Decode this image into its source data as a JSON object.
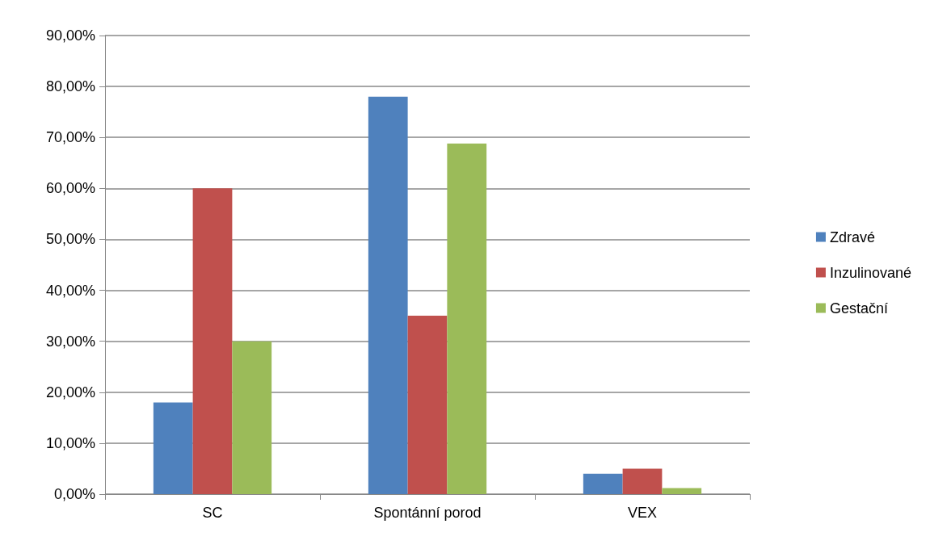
{
  "chart_data": {
    "type": "bar",
    "categories": [
      "SC",
      "Spontánní porod",
      "VEX"
    ],
    "series": [
      {
        "name": "Zdravé",
        "color": "#4f81bd",
        "values": [
          18,
          78,
          4
        ]
      },
      {
        "name": "Inzulinované",
        "color": "#c0504d",
        "values": [
          60,
          35,
          5
        ]
      },
      {
        "name": "Gestační",
        "color": "#9bbb59",
        "values": [
          30,
          68.8,
          1.2
        ]
      }
    ],
    "ylim": [
      0,
      90
    ],
    "yticks": [
      {
        "value": 0,
        "label": "0,00%"
      },
      {
        "value": 10,
        "label": "10,00%"
      },
      {
        "value": 20,
        "label": "20,00%"
      },
      {
        "value": 30,
        "label": "30,00%"
      },
      {
        "value": 40,
        "label": "40,00%"
      },
      {
        "value": 50,
        "label": "50,00%"
      },
      {
        "value": 60,
        "label": "60,00%"
      },
      {
        "value": 70,
        "label": "70,00%"
      },
      {
        "value": 80,
        "label": "80,00%"
      },
      {
        "value": 90,
        "label": "90,00%"
      }
    ],
    "grid": "y",
    "legend": "right"
  }
}
